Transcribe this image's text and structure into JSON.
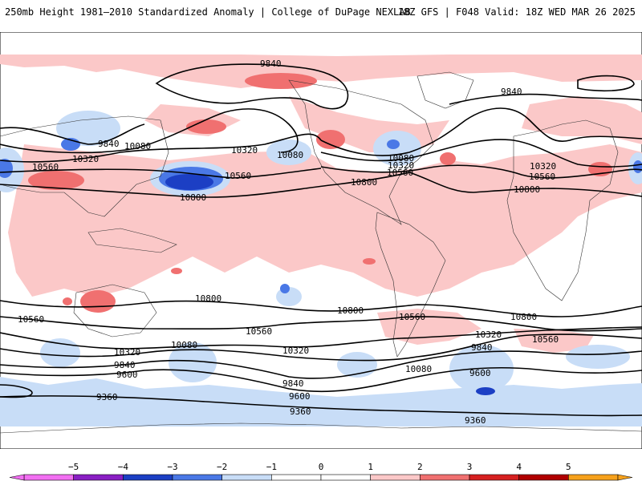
{
  "header": {
    "title_left": "250mb Height 1981–2010 Standardized Anomaly | College of DuPage NEXLAB",
    "title_right": "18Z GFS | F048 Valid: 18Z WED MAR 26 2025"
  },
  "colors": {
    "neg5": "#f26ff2",
    "neg4": "#8a1fc4",
    "neg3": "#1c3fc4",
    "neg2": "#4a78e6",
    "neg1": "#c8ddf7",
    "zero": "#ffffff",
    "pos1": "#fbc8c8",
    "pos2": "#f07070",
    "pos3": "#d62020",
    "pos4": "#b00000",
    "pos5": "#f6a11c",
    "contour": "#000000"
  },
  "colorbar": {
    "ticks": [
      "−5",
      "−4",
      "−3",
      "−2",
      "−1",
      "0",
      "1",
      "2",
      "3",
      "4",
      "5"
    ]
  },
  "contour_labels": [
    "9840",
    "9840",
    "9840",
    "10080",
    "10320",
    "10560",
    "10080",
    "10320",
    "10560",
    "10800",
    "10080",
    "10320",
    "10560",
    "10800",
    "10320",
    "10560",
    "10800",
    "10800",
    "10560",
    "10560",
    "10800",
    "10560",
    "10800",
    "10560",
    "10320",
    "10080",
    "10320",
    "10320",
    "9840",
    "9600",
    "10080",
    "9840",
    "9600",
    "9840",
    "9600",
    "9360",
    "9360",
    "9360"
  ]
}
